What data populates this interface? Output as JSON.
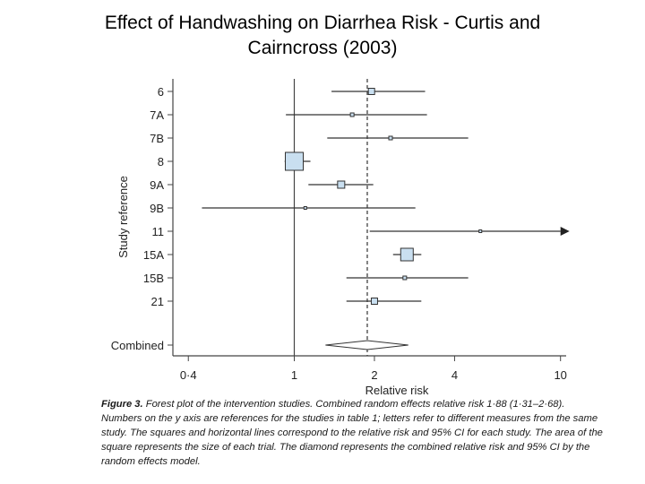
{
  "title_line1": "Effect of Handwashing on Diarrhea Risk - Curtis and",
  "title_line2": "Cairncross (2003)",
  "caption": {
    "lead": "Figure 3.",
    "body": " Forest plot of the intervention studies. Combined random effects relative risk 1·88 (1·31–2·68). Numbers on the y axis are references for the studies in table 1; letters refer to different measures from the same study. The squares and horizontal lines correspond to the relative risk and 95% CI for each study. The area of the square represents the size of each trial. The diamond represents the combined relative risk and 95% CI by the random effects model."
  },
  "chart_data": {
    "type": "forest",
    "xscale": "log",
    "xlim": [
      0.35,
      10.5
    ],
    "xticks": [
      0.4,
      1,
      2,
      4,
      10
    ],
    "xtick_labels": [
      "0·4",
      "1",
      "2",
      "4",
      "10"
    ],
    "xlabel": "Relative risk",
    "ylabel": "Study reference",
    "reference_line": 1,
    "combined_line": 1.88,
    "studies": [
      {
        "label": "6",
        "rr": 1.95,
        "lo": 1.38,
        "hi": 3.1,
        "size": 3.5
      },
      {
        "label": "7A",
        "rr": 1.65,
        "lo": 0.93,
        "hi": 3.15,
        "size": 2
      },
      {
        "label": "7B",
        "rr": 2.3,
        "lo": 1.33,
        "hi": 4.5,
        "size": 2
      },
      {
        "label": "8",
        "rr": 1.0,
        "lo": 0.92,
        "hi": 1.15,
        "size": 10
      },
      {
        "label": "9A",
        "rr": 1.5,
        "lo": 1.13,
        "hi": 1.98,
        "size": 4
      },
      {
        "label": "9B",
        "rr": 1.1,
        "lo": 0.45,
        "hi": 2.85,
        "size": 1.5
      },
      {
        "label": "11",
        "rr": 5.0,
        "lo": 1.92,
        "hi": 10.0,
        "size": 1.5,
        "arrow": true
      },
      {
        "label": "15A",
        "rr": 2.65,
        "lo": 2.35,
        "hi": 3.0,
        "size": 7
      },
      {
        "label": "15B",
        "rr": 2.6,
        "lo": 1.57,
        "hi": 4.5,
        "size": 2
      },
      {
        "label": "21",
        "rr": 2.0,
        "lo": 1.57,
        "hi": 3.0,
        "size": 3.5
      }
    ],
    "combined": {
      "label": "Combined",
      "rr": 1.88,
      "lo": 1.31,
      "hi": 2.68
    },
    "colors": {
      "box_fill": "#c9dff0",
      "box_stroke": "#333333",
      "line": "#333333"
    }
  }
}
